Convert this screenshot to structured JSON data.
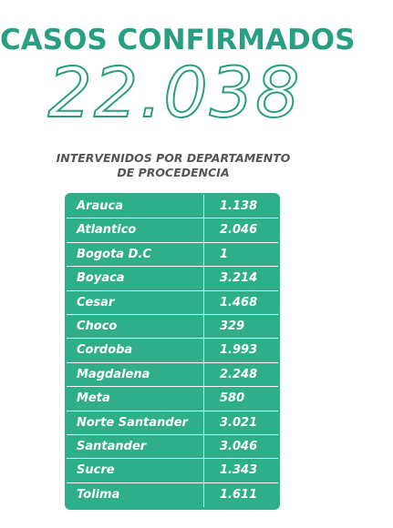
{
  "header": {
    "title": "CASOS CONFIRMADOS",
    "total": "22.038"
  },
  "subtitle": {
    "line1": "INTERVENIDOS POR DEPARTAMENTO",
    "line2": "DE PROCEDENCIA"
  },
  "colors": {
    "accent": "#2a9e82",
    "table_bg": "#2fae8a",
    "subtitle_text": "#555555"
  },
  "table": {
    "rows": [
      {
        "name": "Arauca",
        "value": "1.138"
      },
      {
        "name": "Atlantico",
        "value": "2.046"
      },
      {
        "name": "Bogota D.C",
        "value": "1"
      },
      {
        "name": "Boyaca",
        "value": "3.214"
      },
      {
        "name": "Cesar",
        "value": "1.468"
      },
      {
        "name": "Choco",
        "value": "329"
      },
      {
        "name": "Cordoba",
        "value": "1.993"
      },
      {
        "name": "Magdalena",
        "value": "2.248"
      },
      {
        "name": "Meta",
        "value": "580"
      },
      {
        "name": "Norte Santander",
        "value": "3.021"
      },
      {
        "name": "Santander",
        "value": "3.046"
      },
      {
        "name": "Sucre",
        "value": "1.343"
      },
      {
        "name": "Tolima",
        "value": "1.611"
      }
    ]
  }
}
